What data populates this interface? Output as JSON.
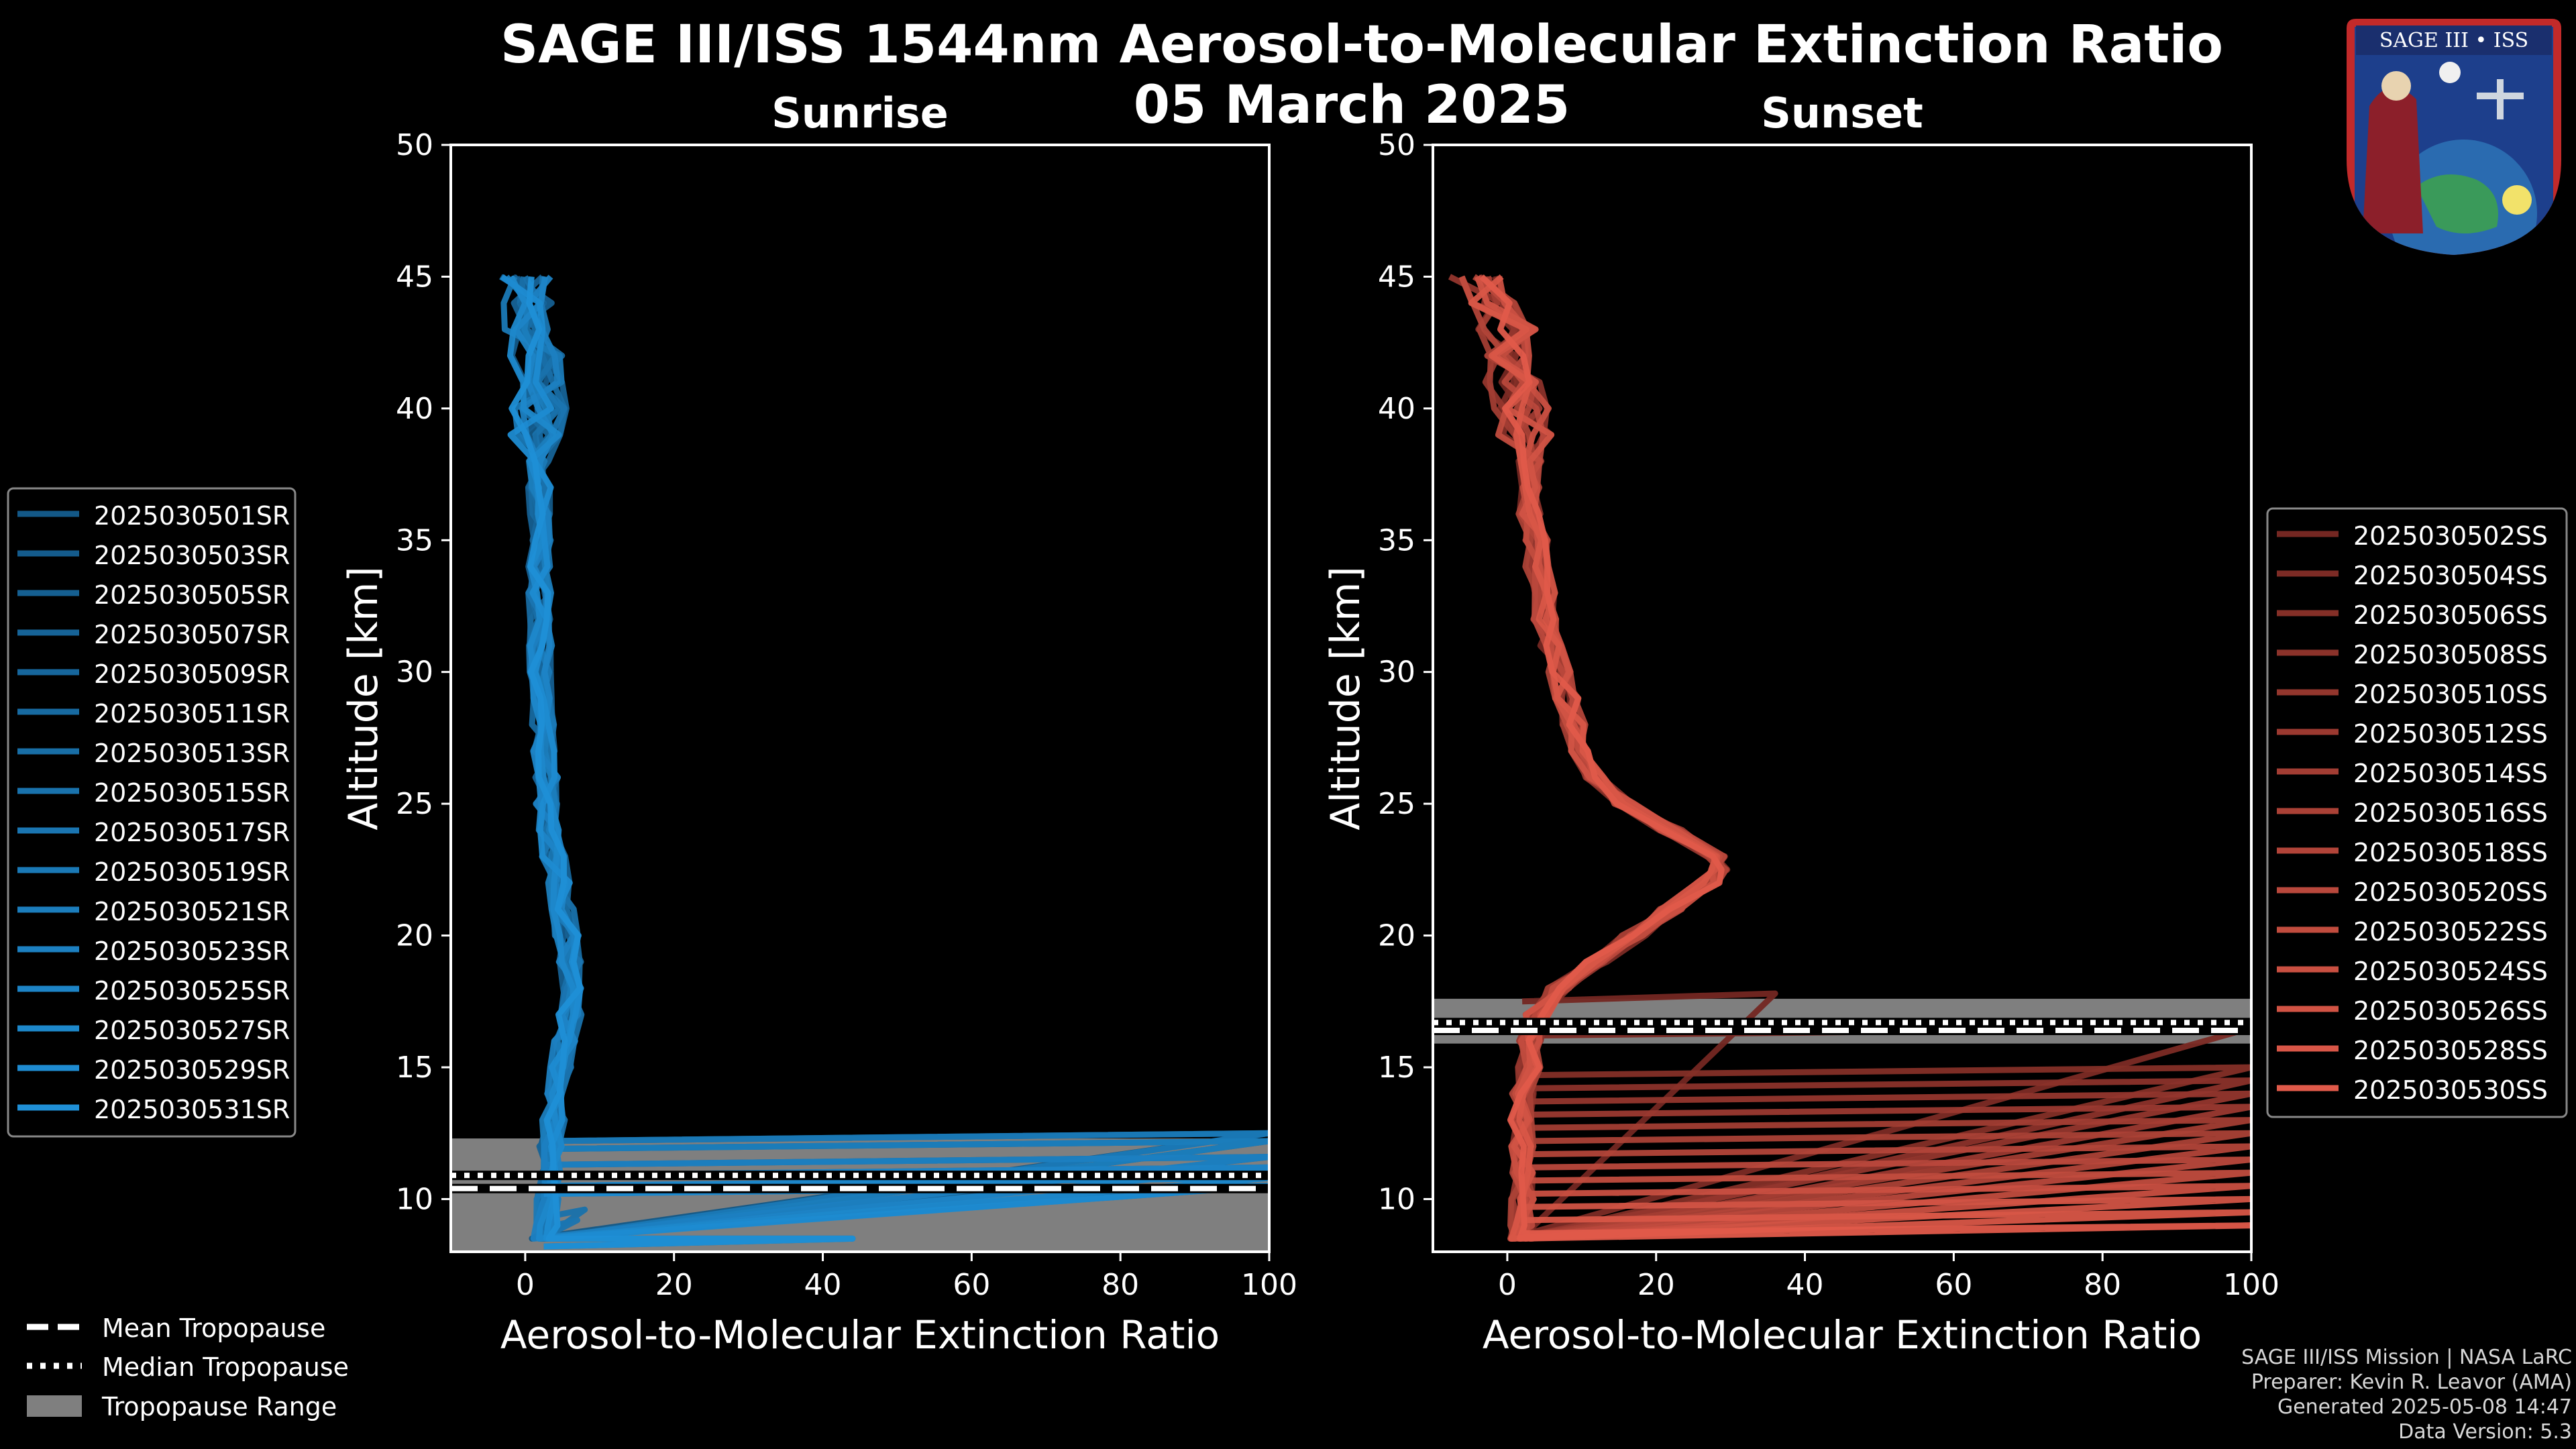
{
  "figure": {
    "title": "SAGE III/ISS 1544nm Aerosol-to-Molecular Extinction Ratio",
    "date": "05 March 2025",
    "badge_text": "SAGE III • ISS",
    "footer": {
      "line1": "SAGE III/ISS Mission | NASA LaRC",
      "line2": "Preparer: Kevin R. Leavor (AMA)",
      "line3": "Generated 2025-05-08 14:47",
      "line4": "Data Version: 5.3"
    },
    "colors": {
      "background": "#000000",
      "sunrise": "#1f8fd6",
      "sunset": "#e05a4a",
      "tropopause_band": "#7f7f7f"
    }
  },
  "chart_data": [
    {
      "type": "line",
      "panel": "Sunrise",
      "title": "Sunrise",
      "xlabel": "Aerosol-to-Molecular Extinction Ratio",
      "ylabel": "Altitude [km]",
      "xlim": [
        -10,
        100
      ],
      "ylim": [
        8,
        50
      ],
      "xticks": [
        0,
        20,
        40,
        60,
        80,
        100
      ],
      "yticks": [
        10,
        15,
        20,
        25,
        30,
        35,
        40,
        45
      ],
      "profile_altitudes_km": [
        8.5,
        9,
        10,
        11,
        12,
        13,
        14,
        15,
        16,
        17,
        18,
        19,
        20,
        21,
        22,
        23,
        24,
        25,
        26,
        27,
        28,
        29,
        30,
        31,
        32,
        33,
        34,
        35,
        36,
        37,
        38,
        39,
        40,
        41,
        42,
        43,
        44,
        45
      ],
      "mean_profile_ratio": [
        2.5,
        2.8,
        3.0,
        3.2,
        3.5,
        3.8,
        4.2,
        4.8,
        5.5,
        6.0,
        6.2,
        6.0,
        5.6,
        5.0,
        4.4,
        3.8,
        3.3,
        3.0,
        2.8,
        2.6,
        2.4,
        2.3,
        2.2,
        2.1,
        2.0,
        2.0,
        2.0,
        2.0,
        2.0,
        2.0,
        1.9,
        1.8,
        1.6,
        1.3,
        1.0,
        0.8,
        0.5,
        0.5
      ],
      "spikes": [
        {
          "alt": 12.5,
          "ratio": 100
        },
        {
          "alt": 12.2,
          "ratio": 100
        },
        {
          "alt": 11.6,
          "ratio": 100
        },
        {
          "alt": 11.2,
          "ratio": 100
        },
        {
          "alt": 10.8,
          "ratio": 100
        },
        {
          "alt": 10.5,
          "ratio": 100
        },
        {
          "alt": 8.5,
          "ratio": 44
        },
        {
          "alt": 9.6,
          "ratio": 8
        },
        {
          "alt": 9.2,
          "ratio": 7
        }
      ],
      "tropopause": {
        "mean_km": 10.4,
        "median_km": 10.9,
        "range_km": [
          8,
          12.3
        ]
      },
      "legend_position": "left",
      "series": [
        {
          "name": "2025030501SR"
        },
        {
          "name": "2025030503SR"
        },
        {
          "name": "2025030505SR"
        },
        {
          "name": "2025030507SR"
        },
        {
          "name": "2025030509SR"
        },
        {
          "name": "2025030511SR"
        },
        {
          "name": "2025030513SR"
        },
        {
          "name": "2025030515SR"
        },
        {
          "name": "2025030517SR"
        },
        {
          "name": "2025030519SR"
        },
        {
          "name": "2025030521SR"
        },
        {
          "name": "2025030523SR"
        },
        {
          "name": "2025030525SR"
        },
        {
          "name": "2025030527SR"
        },
        {
          "name": "2025030529SR"
        },
        {
          "name": "2025030531SR"
        }
      ]
    },
    {
      "type": "line",
      "panel": "Sunset",
      "title": "Sunset",
      "xlabel": "Aerosol-to-Molecular Extinction Ratio",
      "ylabel": "Altitude [km]",
      "xlim": [
        -10,
        100
      ],
      "ylim": [
        8,
        50
      ],
      "xticks": [
        0,
        20,
        40,
        60,
        80,
        100
      ],
      "yticks": [
        10,
        15,
        20,
        25,
        30,
        35,
        40,
        45
      ],
      "profile_altitudes_km": [
        8.5,
        9,
        10,
        11,
        12,
        13,
        14,
        15,
        16,
        17,
        18,
        19,
        20,
        21,
        22,
        22.5,
        23,
        24,
        25,
        26,
        27,
        28,
        29,
        30,
        31,
        32,
        33,
        34,
        35,
        36,
        37,
        38,
        39,
        40,
        41,
        42,
        43,
        44,
        45
      ],
      "mean_profile_ratio": [
        2,
        2,
        2,
        2,
        2,
        2,
        2,
        3,
        3,
        4,
        7,
        12,
        17,
        22,
        27,
        29,
        28,
        22,
        16,
        12,
        10,
        9,
        8,
        7,
        6,
        5,
        5,
        4,
        4,
        3,
        3,
        3,
        2,
        2,
        1,
        1,
        0,
        -2,
        -4
      ],
      "spikes": [
        {
          "alt": 17.8,
          "ratio": 36
        },
        {
          "alt": 16.5,
          "ratio": 100
        },
        {
          "alt": 15.0,
          "ratio": 100
        },
        {
          "alt": 14.5,
          "ratio": 100
        },
        {
          "alt": 14.0,
          "ratio": 100
        },
        {
          "alt": 13.5,
          "ratio": 100
        },
        {
          "alt": 13.0,
          "ratio": 100
        },
        {
          "alt": 12.5,
          "ratio": 100
        },
        {
          "alt": 12.0,
          "ratio": 100
        },
        {
          "alt": 11.5,
          "ratio": 100
        },
        {
          "alt": 11.0,
          "ratio": 100
        },
        {
          "alt": 10.5,
          "ratio": 100
        },
        {
          "alt": 10.0,
          "ratio": 100
        },
        {
          "alt": 9.5,
          "ratio": 100
        },
        {
          "alt": 9.0,
          "ratio": 100
        }
      ],
      "tropopause": {
        "mean_km": 16.4,
        "median_km": 16.7,
        "range_km": [
          15.9,
          17.6
        ]
      },
      "legend_position": "right",
      "series": [
        {
          "name": "2025030502SS"
        },
        {
          "name": "2025030504SS"
        },
        {
          "name": "2025030506SS"
        },
        {
          "name": "2025030508SS"
        },
        {
          "name": "2025030510SS"
        },
        {
          "name": "2025030512SS"
        },
        {
          "name": "2025030514SS"
        },
        {
          "name": "2025030516SS"
        },
        {
          "name": "2025030518SS"
        },
        {
          "name": "2025030520SS"
        },
        {
          "name": "2025030522SS"
        },
        {
          "name": "2025030524SS"
        },
        {
          "name": "2025030526SS"
        },
        {
          "name": "2025030528SS"
        },
        {
          "name": "2025030530SS"
        }
      ]
    }
  ],
  "tropopause_legend": {
    "mean": "Mean Tropopause",
    "median": "Median Tropopause",
    "range": "Tropopause Range"
  }
}
